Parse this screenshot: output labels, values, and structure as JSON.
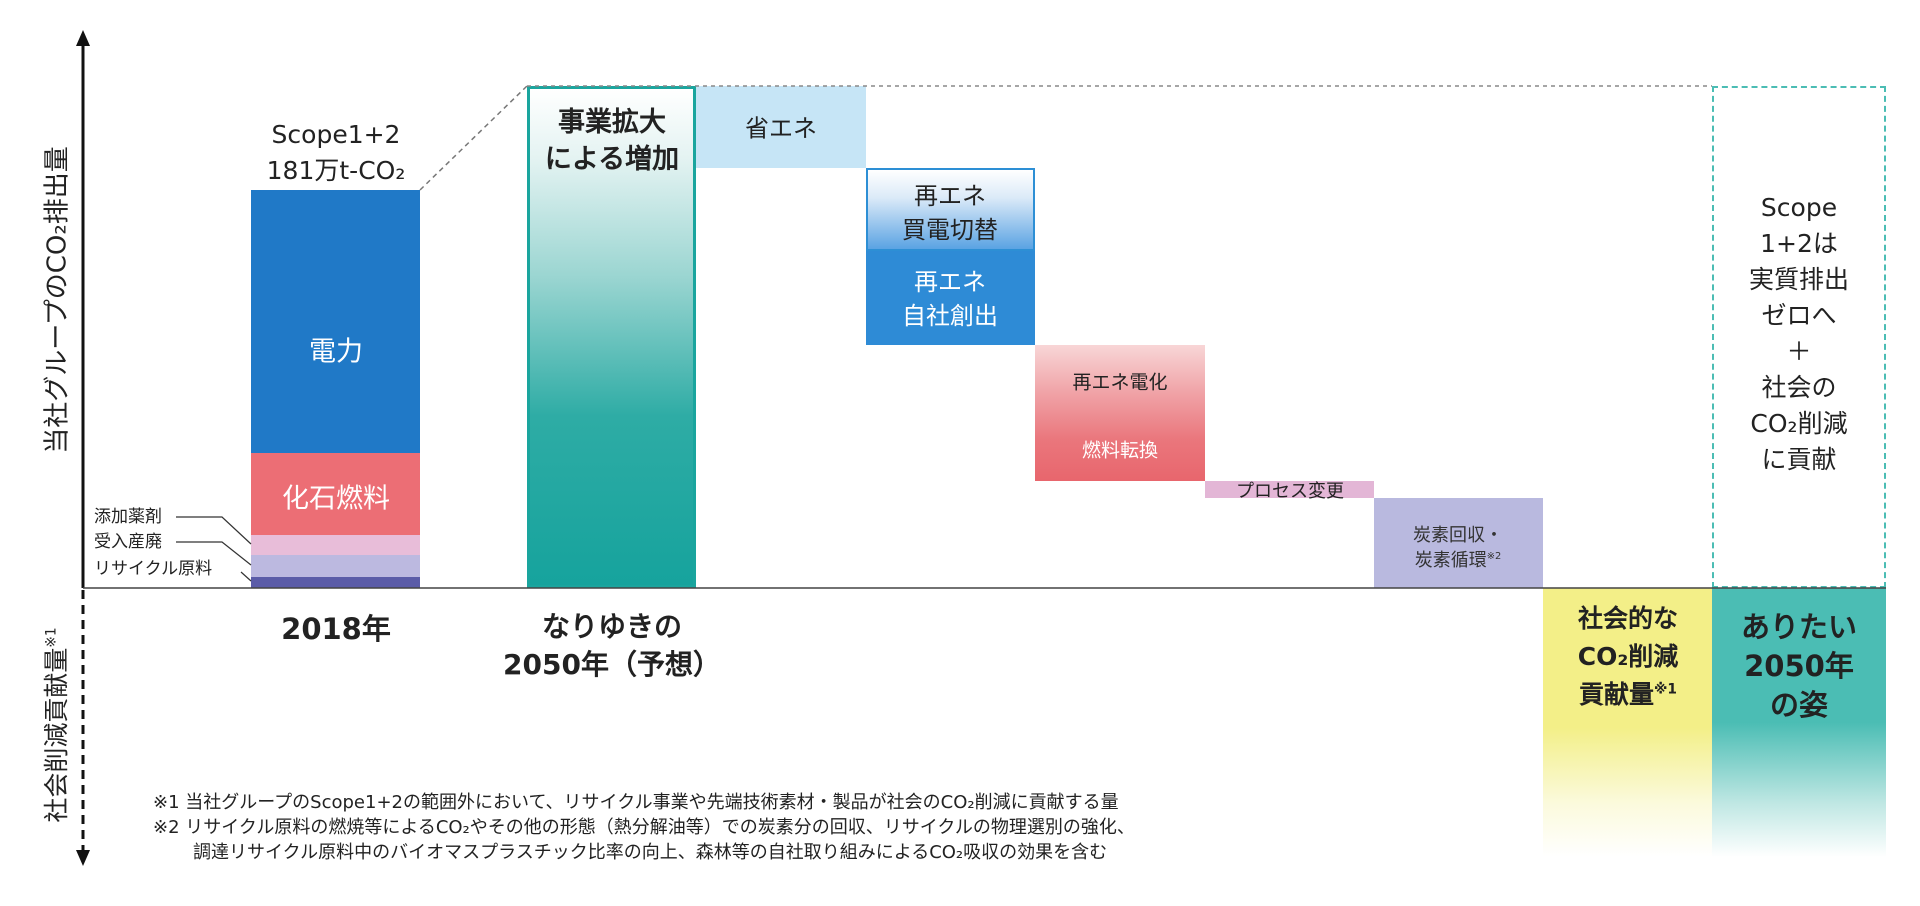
{
  "axis": {
    "upper_label": "当社グループのCO₂排出量",
    "lower_label": "社会削減貢献量",
    "lower_label_note": "※1"
  },
  "base_2018": {
    "scope_label": "Scope1+2",
    "total": "181万t-CO₂",
    "power": "電力",
    "fossil": "化石燃料",
    "additive": "添加薬剤",
    "received_waste": "受入産廃",
    "recycled_material": "リサイクル原料",
    "year_label": "2018年"
  },
  "bau_2050": {
    "bar_label": [
      "事業拡大",
      "による増加"
    ],
    "label": [
      "なりゆきの",
      "2050年（予想）"
    ]
  },
  "reductions": {
    "energy_saving": "省エネ",
    "re_purchase": [
      "再エネ",
      "買電切替"
    ],
    "re_self": [
      "再エネ",
      "自社創出"
    ],
    "electrification": "再エネ電化",
    "fuel_switch": "燃料転換",
    "process_change": "プロセス変更",
    "carbon_capture": "炭素回収・",
    "carbon_cycle": "炭素循環",
    "carbon_cycle_note": "※2"
  },
  "social_contribution": {
    "lines": [
      "社会的な",
      "CO₂削減",
      "貢献量"
    ],
    "note": "※1"
  },
  "ideal_2050": {
    "lines": [
      "ありたい",
      "2050年",
      "の姿"
    ]
  },
  "goal": {
    "lines": [
      "Scope",
      "1+2は",
      "実質排出",
      "ゼロへ",
      "＋",
      "社会の",
      "CO₂削減",
      "に貢献"
    ]
  },
  "footnotes": [
    "※1 当社グループのScope1+2の範囲外において、リサイクル事業や先端技術素材・製品が社会のCO₂削減に貢献する量",
    "※2 リサイクル原料の燃焼等によるCO₂やその他の形態（熱分解油等）での炭素分の回収、リサイクルの物理選別の強化、",
    "調達リサイクル原料中のバイオマスプラスチック比率の向上、森林等の自社取り組みによるCO₂吸収の効果を含む"
  ],
  "colors": {
    "power": "#2079c7",
    "fossil": "#ec6e75",
    "additive": "#e8bdd9",
    "received_waste": "#bcb9e0",
    "recycled_material": "#5b5ca8",
    "bau_teal": "#16a39d",
    "energy_saving": "#c6e5f6",
    "re_blue": "#2e8bd6",
    "electrification": "#e8666d",
    "process_change": "#e3b6d6",
    "carbon_capture": "#b9b9df",
    "social_yellow": "#f3ef88",
    "ideal_teal": "#4bbdb4"
  }
}
